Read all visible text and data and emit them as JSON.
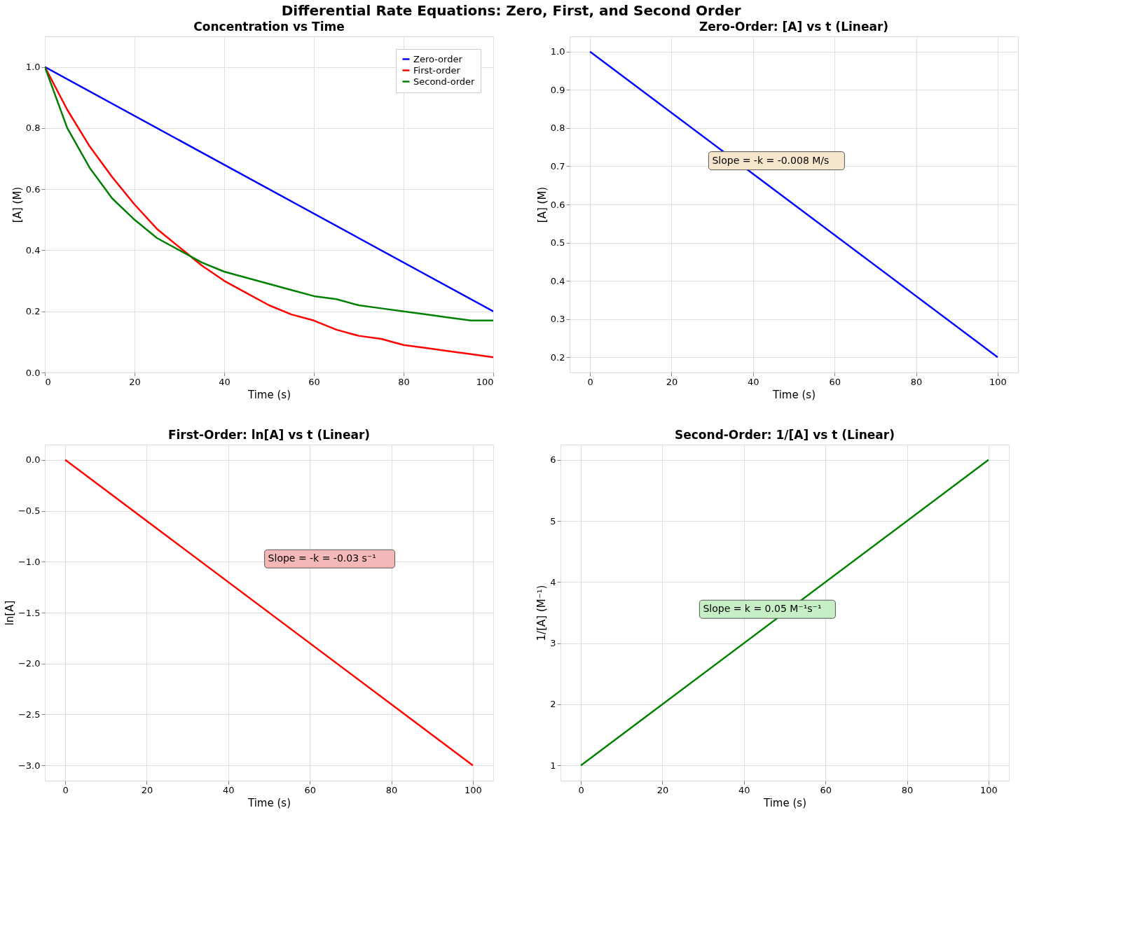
{
  "chart_data": [
    {
      "type": "line",
      "title": "Concentration vs Time",
      "xlabel": "Time (s)",
      "ylabel": "[A] (M)",
      "annotations": [
        "Differential Rate Equations: Zero, First, and Second Order"
      ],
      "xlim": [
        0,
        100
      ],
      "ylim": [
        0,
        1.1
      ],
      "xticks": [
        0,
        20,
        40,
        60,
        80,
        100
      ],
      "yticks": [
        {
          "value": 0,
          "label": "0.0"
        },
        {
          "value": 0.2,
          "label": "0.2"
        },
        {
          "value": 0.4,
          "label": "0.4"
        },
        {
          "value": 0.6,
          "label": "0.6"
        },
        {
          "value": 0.8,
          "label": "0.8"
        },
        {
          "value": 1.0,
          "label": "1.0"
        }
      ],
      "grid": true,
      "legend": "top right",
      "series": [
        {
          "name": "Zero-order",
          "color": "#0000ff",
          "x": [
            0,
            100
          ],
          "values": [
            1.0,
            0.2
          ]
        },
        {
          "name": "First-order",
          "color": "#ff0000",
          "x": [
            0,
            5,
            10,
            15,
            20,
            25,
            30,
            35,
            40,
            45,
            50,
            55,
            60,
            65,
            70,
            75,
            80,
            85,
            90,
            95,
            100
          ],
          "values": [
            1.0,
            0.86,
            0.74,
            0.64,
            0.55,
            0.47,
            0.41,
            0.35,
            0.3,
            0.26,
            0.22,
            0.19,
            0.17,
            0.14,
            0.12,
            0.11,
            0.09,
            0.08,
            0.07,
            0.06,
            0.05
          ]
        },
        {
          "name": "Second-order",
          "color": "#008000",
          "x": [
            0,
            5,
            10,
            15,
            20,
            25,
            30,
            35,
            40,
            45,
            50,
            55,
            60,
            65,
            70,
            75,
            80,
            85,
            90,
            95,
            100
          ],
          "values": [
            1.0,
            0.8,
            0.67,
            0.57,
            0.5,
            0.44,
            0.4,
            0.36,
            0.33,
            0.31,
            0.29,
            0.27,
            0.25,
            0.24,
            0.22,
            0.21,
            0.2,
            0.19,
            0.18,
            0.17,
            0.17
          ]
        }
      ]
    },
    {
      "type": "line",
      "title": "Zero-Order: [A] vs t (Linear)",
      "xlabel": "Time (s)",
      "ylabel": "[A] (M)",
      "annotations": [
        "Slope = -k = -0.008 M/s"
      ],
      "xlim": [
        -5,
        105
      ],
      "ylim": [
        0.16,
        1.04
      ],
      "xticks": [
        0,
        20,
        40,
        60,
        80,
        100
      ],
      "yticks": [
        0.2,
        0.3,
        0.4,
        0.5,
        0.6,
        0.7,
        0.8,
        0.9,
        {
          "value": 1.0,
          "label": "1.0"
        }
      ],
      "grid": true,
      "series": [
        {
          "color": "#0000ff",
          "x": [
            0,
            100
          ],
          "values": [
            1.0,
            0.2
          ]
        }
      ]
    },
    {
      "type": "line",
      "title": "First-Order: ln[A] vs t (Linear)",
      "xlabel": "Time (s)",
      "ylabel": "ln[A]",
      "annotations": [
        "Slope = -k = -0.03 s⁻¹"
      ],
      "xlim": [
        -5,
        105
      ],
      "ylim": [
        -3.15,
        0.15
      ],
      "xticks": [
        0,
        20,
        40,
        60,
        80,
        100
      ],
      "yticks": [
        {
          "value": -3.0,
          "label": "−3.0"
        },
        {
          "value": -2.5,
          "label": "−2.5"
        },
        {
          "value": -2.0,
          "label": "−2.0"
        },
        {
          "value": -1.5,
          "label": "−1.5"
        },
        {
          "value": -1.0,
          "label": "−1.0"
        },
        {
          "value": -0.5,
          "label": "−0.5"
        },
        {
          "value": 0,
          "label": "0.0"
        }
      ],
      "grid": true,
      "series": [
        {
          "color": "#ff0000",
          "x": [
            0,
            100
          ],
          "values": [
            0.0,
            -3.0
          ]
        }
      ]
    },
    {
      "type": "line",
      "title": "Second-Order: 1/[A] vs t (Linear)",
      "xlabel": "Time (s)",
      "ylabel": "1/[A] (M⁻¹)",
      "annotations": [
        "Slope = k = 0.05 M⁻¹s⁻¹"
      ],
      "xlim": [
        -5,
        105
      ],
      "ylim": [
        0.75,
        6.25
      ],
      "xticks": [
        0,
        20,
        40,
        60,
        80,
        100
      ],
      "yticks": [
        1,
        2,
        3,
        4,
        5,
        6
      ],
      "grid": true,
      "series": [
        {
          "color": "#008000",
          "x": [
            0,
            100
          ],
          "values": [
            1.0,
            6.0
          ]
        }
      ]
    }
  ]
}
